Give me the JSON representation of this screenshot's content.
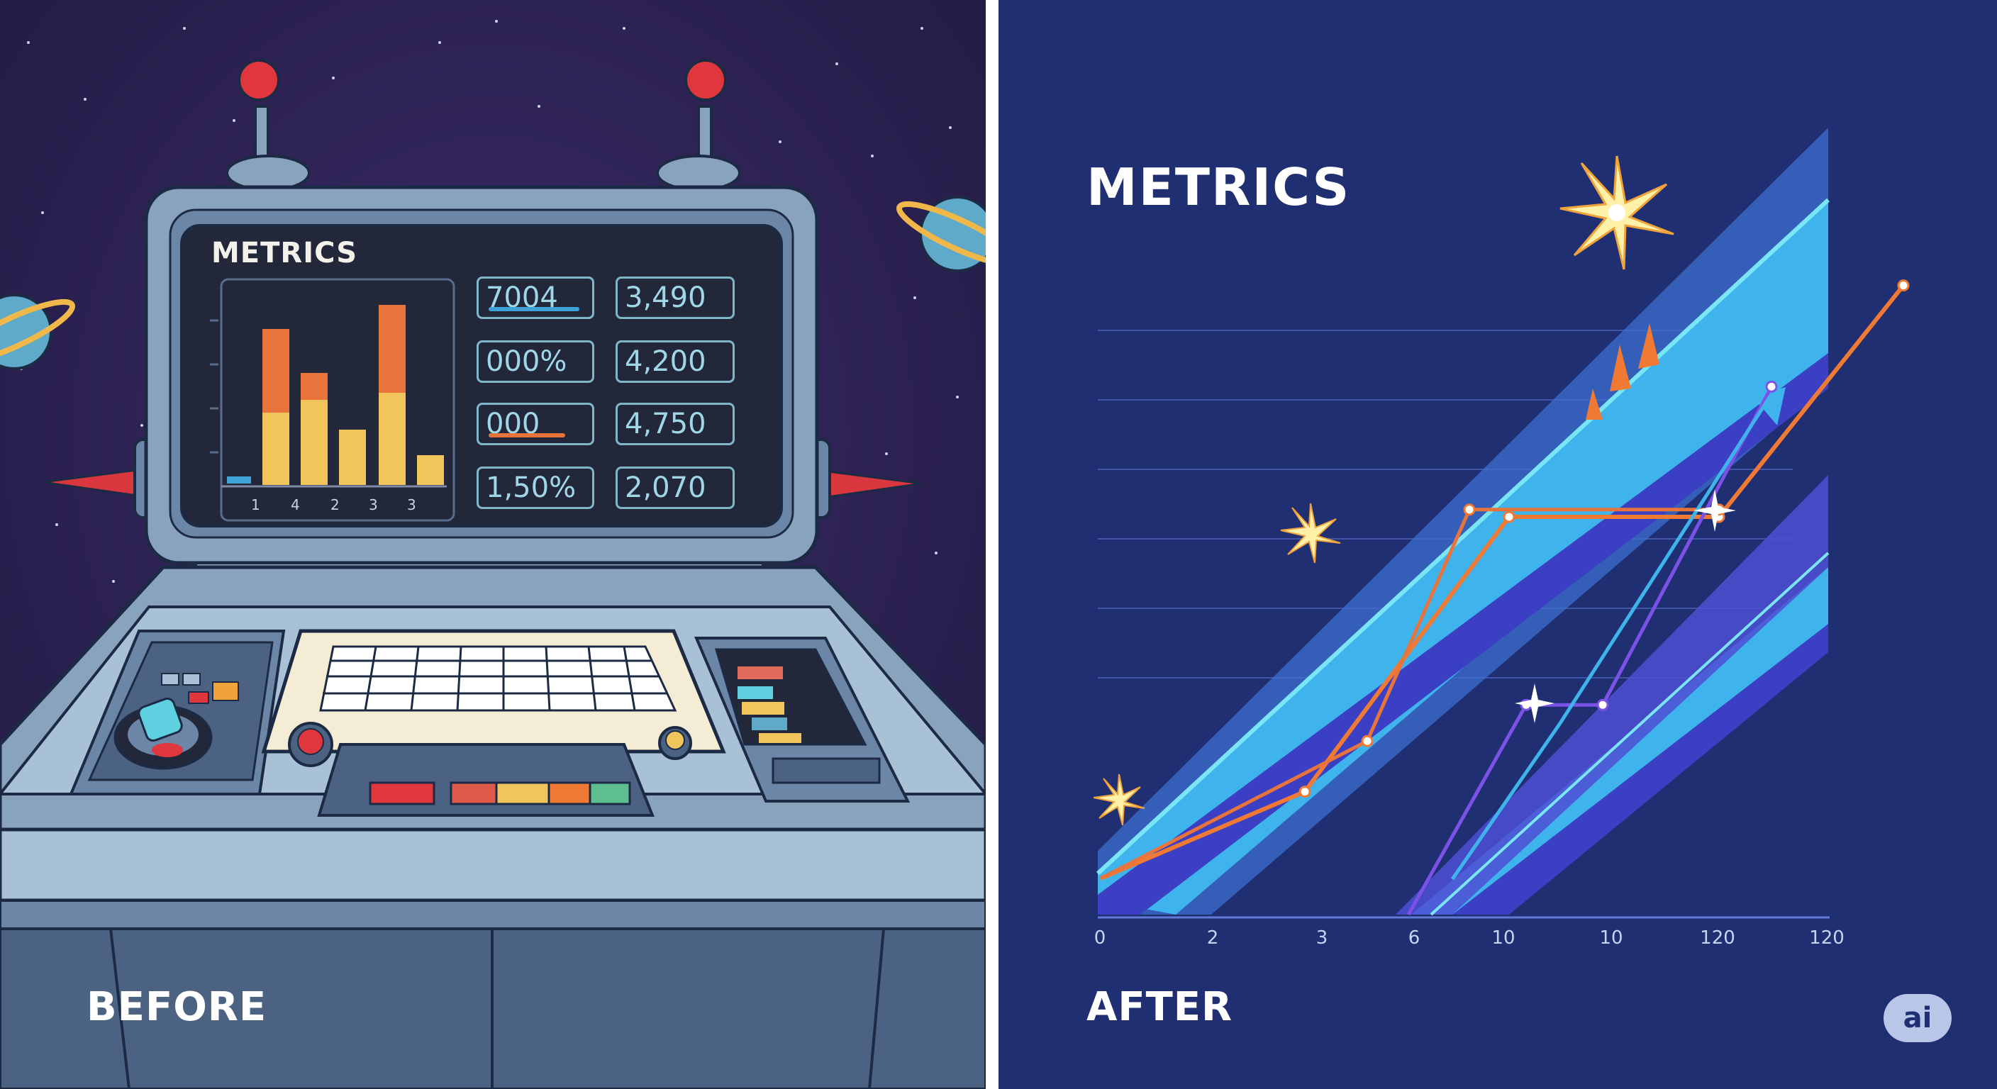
{
  "before": {
    "caption": "BEFORE",
    "screen_title": "METRICS",
    "bar_tick_labels": [
      "1",
      "4",
      "2",
      "3",
      "3"
    ],
    "value_boxes_left": [
      "7004",
      "000%",
      "000",
      "1,50%"
    ],
    "value_boxes_right": [
      "3,490",
      "4,200",
      "4,750",
      "2,070"
    ],
    "colors": {
      "bar_top": "#e8743b",
      "bar_bottom": "#f2c55c",
      "accent_blue": "#3fa3d8"
    }
  },
  "after": {
    "caption": "AFTER",
    "chart_title": "METRICS",
    "badge": "ai",
    "colors": {
      "orange_line": "#f07a34",
      "blue_band": "#3fb4ec",
      "purple_line": "#7b52e8",
      "background": "#1f2f72"
    }
  },
  "chart_data": {
    "type": "line",
    "title": "METRICS",
    "xlabel": "",
    "ylabel": "",
    "x_tick_labels": [
      "0",
      "2",
      "3",
      "6",
      "10",
      "10",
      "120",
      "120"
    ],
    "grid": true,
    "series": [
      {
        "values": [
          0.05,
          0.17,
          0.55,
          0.55,
          0.87
        ]
      },
      {
        "values": [
          0.05,
          0.24,
          0.56,
          0.56
        ]
      },
      {
        "values": [
          0.0,
          0.29,
          0.29,
          0.73
        ]
      }
    ]
  }
}
